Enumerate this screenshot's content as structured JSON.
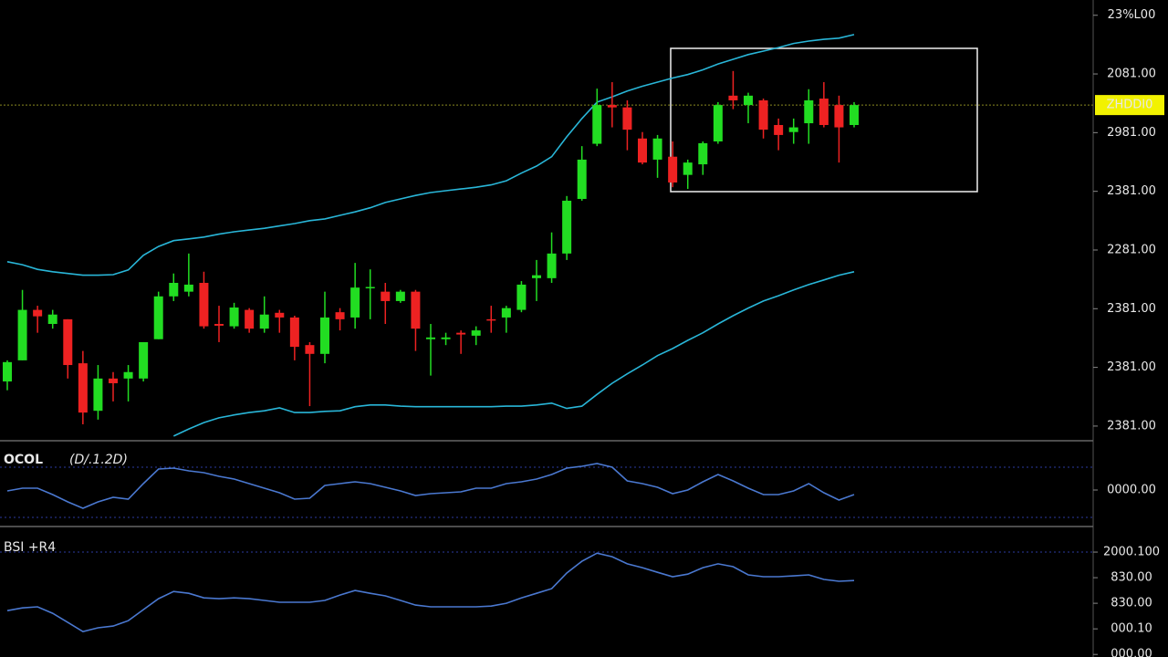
{
  "chart_data": [
    {
      "type": "candlestick",
      "up_color": "#22dd22",
      "down_color": "#ee2222",
      "band_color": "#29b6d8",
      "open": [
        0.76,
        1.12,
        1.98,
        1.74,
        1.82,
        1.07,
        0.26,
        0.81,
        0.81,
        0.81,
        1.48,
        2.21,
        2.29,
        2.44,
        1.74,
        1.7,
        1.98,
        1.66,
        1.93,
        1.85,
        1.38,
        1.23,
        1.94,
        1.85,
        2.36,
        2.29,
        2.13,
        2.29,
        1.48,
        1.48,
        1.59,
        1.54,
        1.82,
        1.85,
        1.98,
        2.52,
        2.52,
        2.94,
        3.87,
        4.81,
        5.47,
        5.43,
        4.9,
        4.54,
        4.59,
        4.28,
        4.46,
        4.85,
        5.63,
        5.47,
        5.55,
        5.13,
        5.01,
        5.16,
        5.58,
        5.47,
        5.13
      ],
      "high": [
        1.12,
        2.32,
        2.05,
        1.98,
        1.82,
        1.28,
        1.04,
        0.92,
        1.04,
        1.43,
        2.29,
        2.6,
        2.94,
        2.63,
        2.05,
        2.1,
        2.01,
        2.21,
        1.98,
        1.88,
        1.43,
        2.29,
        2.01,
        2.78,
        2.67,
        2.44,
        2.32,
        2.32,
        1.74,
        1.59,
        1.63,
        1.7,
        2.05,
        2.05,
        2.47,
        2.83,
        3.3,
        3.92,
        4.77,
        5.75,
        5.86,
        5.55,
        5.01,
        4.96,
        4.85,
        4.54,
        4.85,
        5.52,
        6.05,
        5.68,
        5.58,
        5.24,
        5.24,
        5.74,
        5.86,
        5.63,
        5.52
      ],
      "low": [
        0.61,
        1.12,
        1.59,
        1.66,
        0.81,
        0.03,
        0.11,
        0.42,
        0.42,
        0.76,
        1.48,
        2.13,
        2.21,
        1.66,
        1.43,
        1.66,
        1.59,
        1.59,
        1.59,
        1.12,
        0.34,
        1.07,
        1.63,
        1.66,
        1.82,
        1.74,
        2.1,
        1.28,
        0.86,
        1.38,
        1.23,
        1.38,
        1.59,
        1.59,
        1.94,
        2.13,
        2.44,
        2.83,
        3.84,
        4.77,
        5.09,
        4.7,
        4.46,
        4.23,
        4.07,
        4.04,
        4.28,
        4.81,
        5.4,
        5.16,
        4.9,
        4.7,
        4.81,
        4.81,
        5.09,
        4.49,
        5.09
      ],
      "close": [
        1.09,
        1.98,
        1.87,
        1.9,
        1.04,
        0.23,
        0.81,
        0.73,
        0.92,
        1.43,
        2.21,
        2.44,
        2.41,
        1.7,
        1.71,
        2.02,
        1.66,
        1.9,
        1.85,
        1.35,
        1.23,
        1.85,
        1.82,
        2.36,
        2.37,
        2.13,
        2.29,
        1.66,
        1.51,
        1.51,
        1.56,
        1.63,
        1.81,
        2.01,
        2.41,
        2.57,
        2.94,
        3.84,
        4.54,
        5.47,
        5.43,
        5.05,
        4.49,
        4.9,
        4.15,
        4.49,
        4.82,
        5.47,
        5.55,
        5.63,
        5.05,
        4.96,
        5.09,
        5.55,
        5.13,
        5.09,
        5.47
      ],
      "upper_band": [
        2.8,
        2.75,
        2.67,
        2.63,
        2.6,
        2.57,
        2.57,
        2.58,
        2.66,
        2.91,
        3.06,
        3.16,
        3.19,
        3.22,
        3.27,
        3.31,
        3.34,
        3.37,
        3.41,
        3.45,
        3.5,
        3.53,
        3.59,
        3.65,
        3.72,
        3.81,
        3.87,
        3.93,
        3.98,
        4.01,
        4.04,
        4.07,
        4.11,
        4.18,
        4.31,
        4.43,
        4.59,
        4.93,
        5.24,
        5.52,
        5.61,
        5.71,
        5.79,
        5.86,
        5.93,
        5.99,
        6.07,
        6.17,
        6.25,
        6.33,
        6.39,
        6.45,
        6.52,
        6.56,
        6.59,
        6.61,
        6.67
      ],
      "lower_band": [
        null,
        null,
        null,
        null,
        null,
        null,
        null,
        null,
        null,
        null,
        null,
        -0.17,
        -0.05,
        0.06,
        0.14,
        0.19,
        0.23,
        0.26,
        0.31,
        0.23,
        0.23,
        0.25,
        0.26,
        0.33,
        0.36,
        0.36,
        0.34,
        0.33,
        0.33,
        0.33,
        0.33,
        0.33,
        0.33,
        0.34,
        0.34,
        0.36,
        0.39,
        0.3,
        0.34,
        0.54,
        0.73,
        0.89,
        1.04,
        1.2,
        1.32,
        1.46,
        1.59,
        1.74,
        1.88,
        2.01,
        2.13,
        2.22,
        2.32,
        2.41,
        2.49,
        2.57,
        2.63
      ],
      "last_price": {
        "value": 5.47,
        "label": "ZHDDI0"
      },
      "ylim": [
        -0.25,
        7.26
      ],
      "yticks": [
        {
          "value": 0,
          "label": "2381.00"
        },
        {
          "value": 1,
          "label": "2381.00"
        },
        {
          "value": 2,
          "label": "2381.00"
        },
        {
          "value": 3,
          "label": "2281.00"
        },
        {
          "value": 4,
          "label": "2381.00"
        },
        {
          "value": 5,
          "label": "2981.00"
        },
        {
          "value": 6,
          "label": "2081.00"
        },
        {
          "value": 7,
          "label": "23%L00"
        }
      ]
    },
    {
      "type": "line",
      "title": "OCOL",
      "subtitle": "(D/.1.2D)",
      "title_color": "#33dd33",
      "color": "#4a78d0",
      "values": [
        -0.04,
        0.08,
        0.08,
        -0.2,
        -0.52,
        -0.8,
        -0.52,
        -0.32,
        -0.4,
        0.28,
        0.92,
        0.96,
        0.84,
        0.76,
        0.6,
        0.48,
        0.28,
        0.08,
        -0.12,
        -0.4,
        -0.36,
        0.2,
        0.28,
        0.36,
        0.28,
        0.12,
        -0.04,
        -0.24,
        -0.16,
        -0.12,
        -0.08,
        0.08,
        0.08,
        0.28,
        0.36,
        0.48,
        0.68,
        0.96,
        1.04,
        1.16,
        1.0,
        0.4,
        0.28,
        0.12,
        -0.16,
        0,
        0.36,
        0.68,
        0.4,
        0.08,
        -0.2,
        -0.2,
        -0.04,
        0.28,
        -0.12,
        -0.44,
        -0.2
      ],
      "ylim": [
        -1.6,
        2.16
      ],
      "yticks": [
        {
          "value": 0,
          "label": "0000.00"
        }
      ]
    },
    {
      "type": "line",
      "title": "BSI +R4",
      "title_color": "#ff3030",
      "color": "#4a78d0",
      "values": [
        1.71,
        1.82,
        1.86,
        1.61,
        1.25,
        0.89,
        1.04,
        1.11,
        1.32,
        1.75,
        2.18,
        2.46,
        2.39,
        2.21,
        2.18,
        2.21,
        2.18,
        2.11,
        2.04,
        2.04,
        2.04,
        2.11,
        2.32,
        2.5,
        2.39,
        2.29,
        2.11,
        1.93,
        1.86,
        1.86,
        1.86,
        1.86,
        1.89,
        2.0,
        2.21,
        2.39,
        2.57,
        3.18,
        3.64,
        3.96,
        3.82,
        3.54,
        3.39,
        3.21,
        3.04,
        3.14,
        3.39,
        3.54,
        3.43,
        3.11,
        3.04,
        3.04,
        3.07,
        3.11,
        2.93,
        2.86,
        2.89
      ],
      "ylim": [
        -0.1,
        5
      ],
      "yticks": [
        {
          "value": 0,
          "label": "000.00"
        },
        {
          "value": 1,
          "label": "000.10"
        },
        {
          "value": 2,
          "label": "830.00"
        },
        {
          "value": 3,
          "label": "830.00"
        },
        {
          "value": 4,
          "label": "2000.100"
        }
      ]
    }
  ]
}
